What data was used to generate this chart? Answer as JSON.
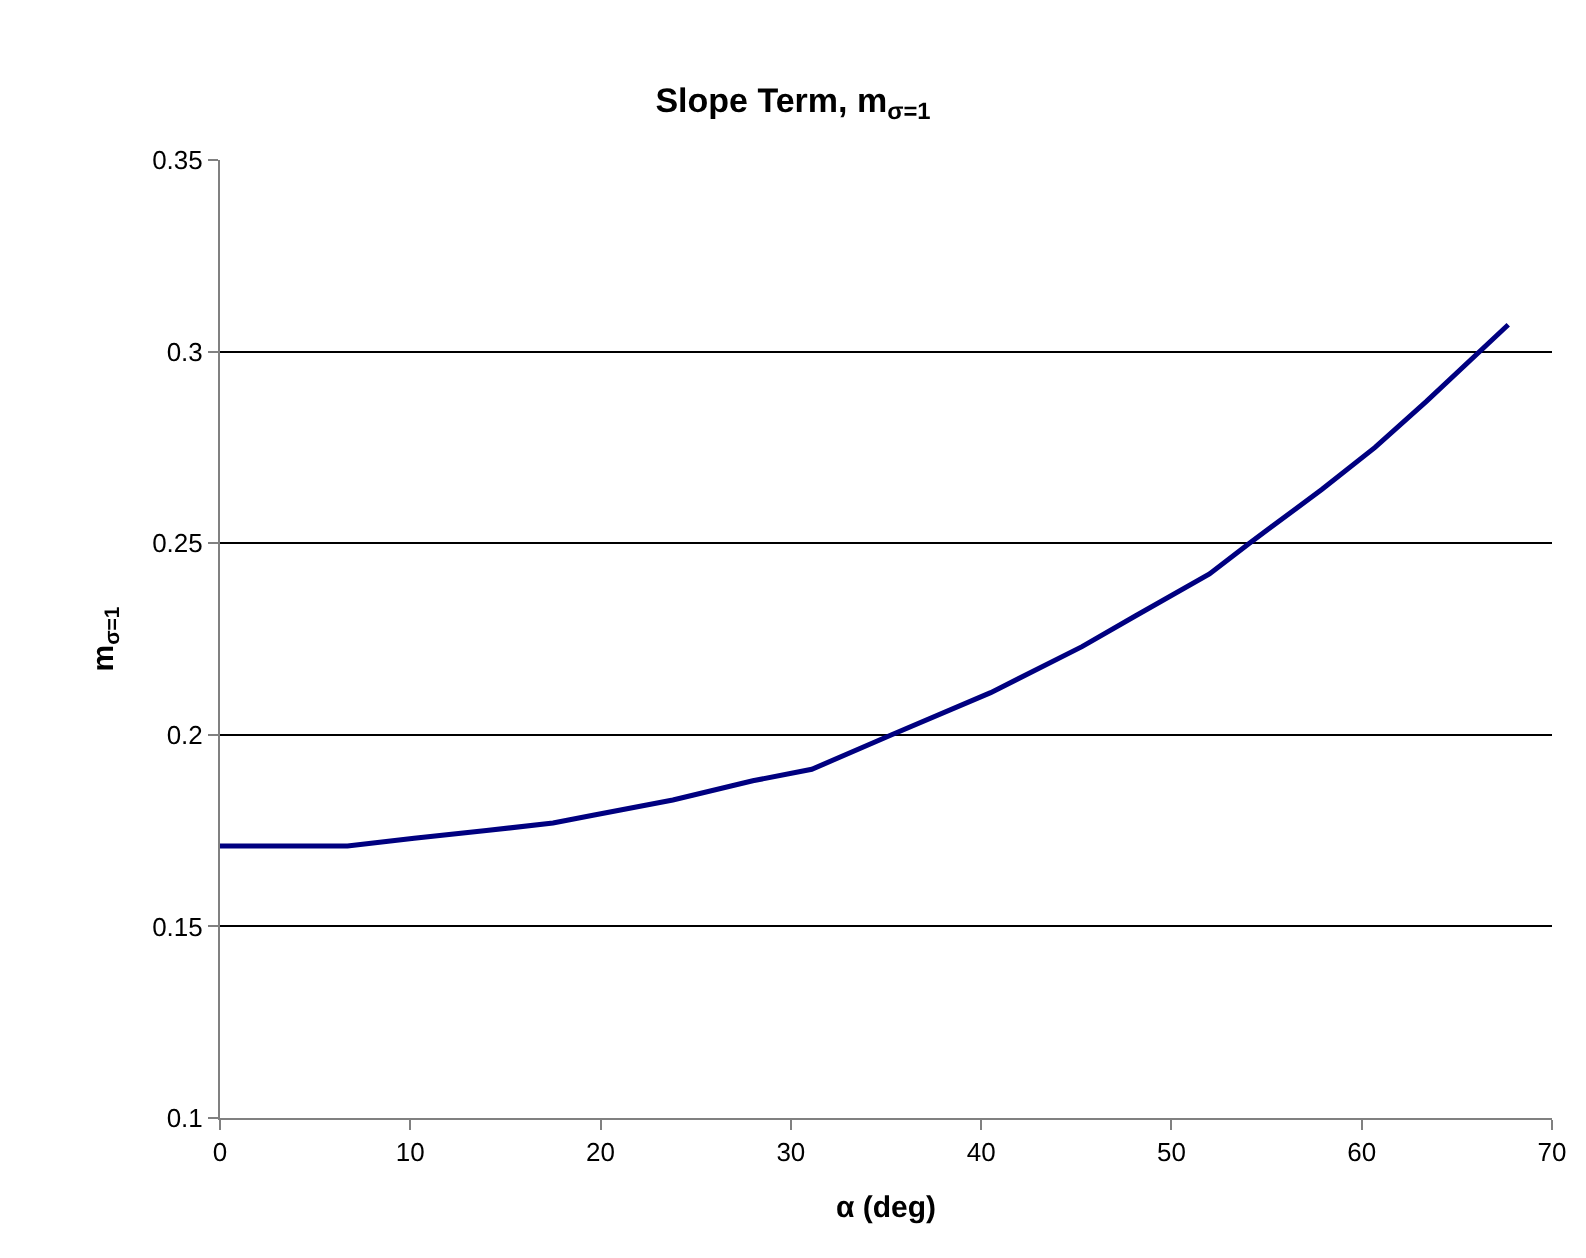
{
  "chart_data": {
    "type": "line",
    "title": "Slope Term, m$_{σ=1}$",
    "xlabel": "α (deg)",
    "ylabel": "m$_{σ=1}$",
    "series": [
      {
        "color": "#000080",
        "x": [
          0,
          6.7,
          10.2,
          14,
          17.5,
          19.6,
          23.8,
          28,
          31.1,
          35.3,
          40.5,
          45.3,
          48.1,
          52.0,
          54.1,
          57.9,
          60.7,
          63.4,
          67.7
        ],
        "values": [
          0.171,
          0.171,
          0.173,
          0.175,
          0.177,
          0.179,
          0.183,
          0.188,
          0.191,
          0.2,
          0.211,
          0.223,
          0.231,
          0.242,
          0.25,
          0.264,
          0.275,
          0.287,
          0.307
        ]
      }
    ],
    "xlim": [
      0,
      70
    ],
    "xticks": [
      0,
      10,
      20,
      30,
      40,
      50,
      60,
      70
    ],
    "ylim": [
      0.1,
      0.35
    ],
    "yticks": [
      0.1,
      0.15,
      0.2,
      0.25,
      0.3,
      0.35
    ],
    "grid": "y",
    "legend": false,
    "marker": "none",
    "line_style": "solid"
  }
}
